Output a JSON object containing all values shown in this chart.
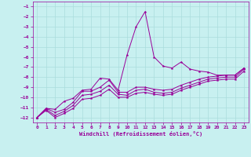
{
  "xlabel": "Windchill (Refroidissement éolien,°C)",
  "xlim": [
    -0.5,
    23.5
  ],
  "ylim": [
    -12.5,
    -0.5
  ],
  "xticks": [
    0,
    1,
    2,
    3,
    4,
    5,
    6,
    7,
    8,
    9,
    10,
    11,
    12,
    13,
    14,
    15,
    16,
    17,
    18,
    19,
    20,
    21,
    22,
    23
  ],
  "yticks": [
    -12,
    -11,
    -10,
    -9,
    -8,
    -7,
    -6,
    -5,
    -4,
    -3,
    -2,
    -1
  ],
  "bg_color": "#c8f0f0",
  "line_color": "#990099",
  "grid_color": "#aadddd",
  "lines": [
    {
      "x": [
        0,
        1,
        2,
        3,
        4,
        5,
        6,
        7,
        8,
        9,
        10,
        11,
        12,
        13,
        14,
        15,
        16,
        17,
        18,
        19,
        20,
        21,
        22,
        23
      ],
      "y": [
        -12,
        -11.1,
        -11.2,
        -10.4,
        -10.1,
        -9.3,
        -9.2,
        -8.1,
        -8.2,
        -9.3,
        -5.8,
        -3.0,
        -1.5,
        -6.0,
        -6.9,
        -7.1,
        -6.5,
        -7.2,
        -7.4,
        -7.5,
        -7.8,
        -7.8,
        -7.8,
        -7.1
      ]
    },
    {
      "x": [
        0,
        1,
        2,
        3,
        4,
        5,
        6,
        7,
        8,
        9,
        10,
        11,
        12,
        13,
        14,
        15,
        16,
        17,
        18,
        19,
        20,
        21,
        22,
        23
      ],
      "y": [
        -12,
        -11.1,
        -11.5,
        -11.2,
        -10.5,
        -9.4,
        -9.4,
        -9.0,
        -8.3,
        -9.5,
        -9.5,
        -9.0,
        -9.0,
        -9.2,
        -9.3,
        -9.2,
        -8.8,
        -8.5,
        -8.2,
        -8.0,
        -7.9,
        -7.8,
        -7.8,
        -7.1
      ]
    },
    {
      "x": [
        0,
        1,
        2,
        3,
        4,
        5,
        6,
        7,
        8,
        9,
        10,
        11,
        12,
        13,
        14,
        15,
        16,
        17,
        18,
        19,
        20,
        21,
        22,
        23
      ],
      "y": [
        -12,
        -11.2,
        -11.8,
        -11.4,
        -10.8,
        -9.8,
        -9.7,
        -9.4,
        -8.8,
        -9.7,
        -9.8,
        -9.3,
        -9.2,
        -9.5,
        -9.6,
        -9.5,
        -9.1,
        -8.8,
        -8.5,
        -8.2,
        -8.1,
        -8.0,
        -8.0,
        -7.2
      ]
    },
    {
      "x": [
        0,
        1,
        2,
        3,
        4,
        5,
        6,
        7,
        8,
        9,
        10,
        11,
        12,
        13,
        14,
        15,
        16,
        17,
        18,
        19,
        20,
        21,
        22,
        23
      ],
      "y": [
        -12,
        -11.3,
        -12.0,
        -11.6,
        -11.1,
        -10.2,
        -10.1,
        -9.8,
        -9.2,
        -10.0,
        -10.0,
        -9.6,
        -9.5,
        -9.7,
        -9.8,
        -9.7,
        -9.3,
        -9.0,
        -8.7,
        -8.4,
        -8.3,
        -8.2,
        -8.2,
        -7.4
      ]
    }
  ],
  "figsize": [
    3.2,
    2.0
  ],
  "dpi": 100
}
